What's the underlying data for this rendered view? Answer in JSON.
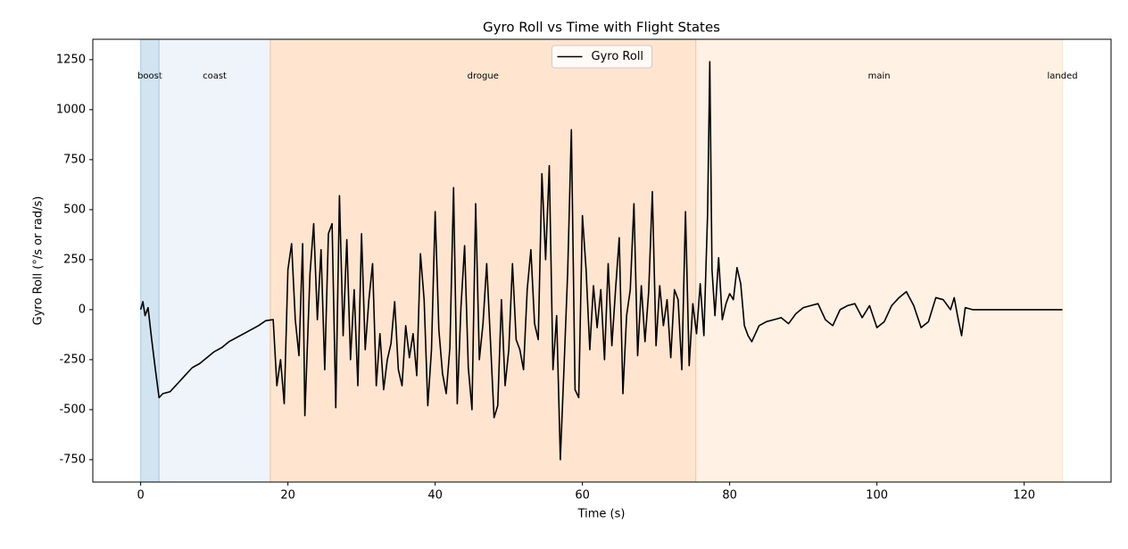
{
  "chart_data": {
    "type": "line",
    "title": "Gyro Roll vs Time with Flight States",
    "x_label": "Time (s)",
    "y_label": "Gyro Roll (°/s or rad/s)",
    "xlim": [
      -6.5,
      131.8
    ],
    "ylim": [
      -862,
      1352
    ],
    "xticks": [
      0,
      20,
      40,
      60,
      80,
      100,
      120
    ],
    "yticks": [
      -750,
      -500,
      -250,
      0,
      250,
      500,
      750,
      1000,
      1250
    ],
    "legend": "upper center",
    "states": [
      {
        "name": "boost",
        "start": 0,
        "end": 2.5,
        "color": "#1f77b4"
      },
      {
        "name": "coast",
        "start": 2.5,
        "end": 17.6,
        "color": "#aec7e8"
      },
      {
        "name": "drogue",
        "start": 17.6,
        "end": 75.4,
        "color": "#ff7f0e"
      },
      {
        "name": "main",
        "start": 75.4,
        "end": 125.2,
        "color": "#ffbb78"
      },
      {
        "name": "landed",
        "start": 125.2,
        "end": 125.2,
        "color": "#2ca02c"
      }
    ],
    "series": [
      {
        "name": "Gyro Roll",
        "color": "#000000",
        "x": [
          0,
          0.3,
          0.6,
          1,
          1.5,
          2,
          2.5,
          3,
          4,
          5,
          6,
          7,
          8,
          9,
          10,
          11,
          12,
          13,
          14,
          15,
          16,
          17,
          18,
          18.5,
          19,
          19.5,
          20,
          20.5,
          21,
          21.5,
          22,
          22.3,
          23,
          23.5,
          24,
          24.5,
          25,
          25.5,
          26,
          26.5,
          27,
          27.5,
          28,
          28.5,
          29,
          29.5,
          30,
          30.5,
          31,
          31.5,
          32,
          32.5,
          33,
          33.5,
          34,
          34.5,
          35,
          35.5,
          36,
          36.5,
          37,
          37.5,
          38,
          38.5,
          39,
          39.5,
          40,
          40.5,
          41,
          41.5,
          42,
          42.5,
          43,
          43.5,
          44,
          44.5,
          45,
          45.5,
          46,
          46.5,
          47,
          47.5,
          48,
          48.5,
          49,
          49.5,
          50,
          50.5,
          51,
          51.5,
          52,
          52.5,
          53,
          53.5,
          54,
          54.5,
          55,
          55.5,
          56,
          56.5,
          57,
          57.5,
          58,
          58.5,
          59,
          59.5,
          60,
          60.5,
          61,
          61.5,
          62,
          62.5,
          63,
          63.5,
          64,
          64.5,
          65,
          65.5,
          66,
          66.5,
          67,
          67.5,
          68,
          68.5,
          69,
          69.5,
          70,
          70.5,
          71,
          71.5,
          72,
          72.5,
          73,
          73.5,
          74,
          74.5,
          75,
          75.5,
          76,
          76.5,
          77,
          77.3,
          77.6,
          78,
          78.5,
          79,
          79.5,
          80,
          80.5,
          81,
          81.5,
          82,
          82.5,
          83,
          84,
          85,
          86,
          87,
          88,
          89,
          90,
          91,
          92,
          93,
          94,
          95,
          96,
          97,
          98,
          99,
          100,
          101,
          102,
          103,
          104,
          105,
          106,
          107,
          108,
          109,
          110,
          110.5,
          111,
          111.5,
          112,
          113,
          125.2
        ],
        "values": [
          0,
          40,
          -30,
          10,
          -150,
          -300,
          -440,
          -420,
          -410,
          -370,
          -330,
          -290,
          -270,
          -240,
          -210,
          -190,
          -160,
          -140,
          -120,
          -100,
          -80,
          -55,
          -50,
          -380,
          -250,
          -470,
          200,
          330,
          -50,
          -230,
          330,
          -530,
          180,
          430,
          -50,
          300,
          -300,
          380,
          430,
          -490,
          570,
          -130,
          350,
          -250,
          100,
          -380,
          380,
          -200,
          50,
          230,
          -380,
          -120,
          -400,
          -250,
          -170,
          40,
          -300,
          -380,
          -80,
          -240,
          -120,
          -330,
          280,
          50,
          -480,
          -200,
          490,
          -100,
          -320,
          -420,
          -190,
          610,
          -470,
          10,
          320,
          -290,
          -500,
          530,
          -250,
          -70,
          230,
          -150,
          -540,
          -480,
          50,
          -380,
          -200,
          230,
          -150,
          -200,
          -300,
          100,
          300,
          -70,
          -150,
          680,
          250,
          720,
          -300,
          -30,
          -750,
          -290,
          190,
          900,
          -400,
          -440,
          470,
          200,
          -200,
          120,
          -90,
          100,
          -250,
          230,
          -180,
          100,
          360,
          -420,
          -30,
          100,
          530,
          -230,
          120,
          -160,
          90,
          590,
          -180,
          120,
          -80,
          50,
          -240,
          100,
          50,
          -300,
          490,
          -280,
          30,
          -120,
          130,
          -130,
          480,
          1240,
          200,
          -30,
          260,
          -50,
          30,
          80,
          50,
          210,
          130,
          -80,
          -130,
          -160,
          -80,
          -60,
          -50,
          -40,
          -70,
          -20,
          10,
          20,
          30,
          -50,
          -80,
          0,
          20,
          30,
          -40,
          20,
          -90,
          -60,
          20,
          60,
          90,
          20,
          -90,
          -60,
          60,
          50,
          0,
          60,
          -40,
          -130,
          10,
          0,
          0
        ]
      }
    ]
  }
}
